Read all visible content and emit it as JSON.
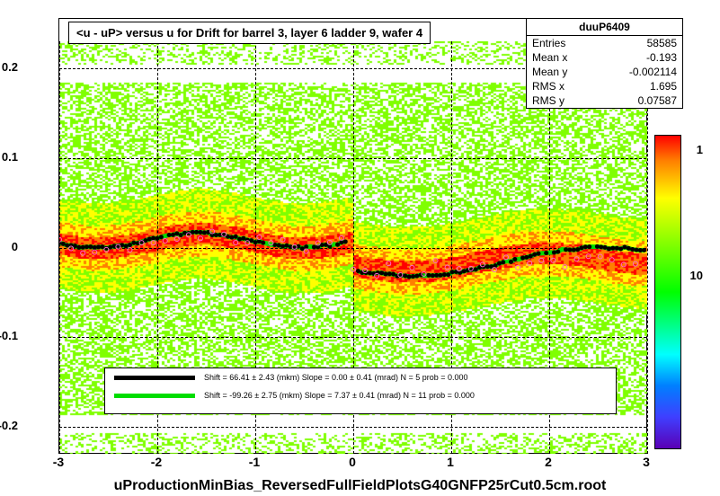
{
  "chart": {
    "type": "heatmap-scatter",
    "title": "<u - uP>       versus    u for Drift for barrel 3, layer 6 ladder 9, wafer 4",
    "stats": {
      "name": "duuP6409",
      "entries": "58585",
      "meanx": "-0.193",
      "meany": "-0.002114",
      "rmsx": "1.695",
      "rmsy": "0.07587"
    },
    "xlim": [
      -3,
      3
    ],
    "ylim": [
      -0.23,
      0.23
    ],
    "xticks": [
      -3,
      -2,
      -1,
      0,
      1,
      2,
      3
    ],
    "yticks": [
      -0.2,
      -0.1,
      0,
      0.1,
      0.2
    ],
    "colorbar_ticks": [
      1,
      10
    ],
    "colorbar_pos": [
      0.42,
      0.82
    ],
    "bottom_label": "uProductionMinBias_ReversedFullFieldPlotsG40GNFP25rCut0.5cm.root",
    "legend": {
      "fit1": {
        "color": "#000000",
        "text": "Shift =    66.41 ± 2.43 (mkm) Slope =     0.00 ± 0.41 (mrad)  N = 5 prob = 0.000"
      },
      "fit2": {
        "color": "#00dd00",
        "text": "Shift =   -99.26 ± 2.75 (mkm) Slope =     7.37 ± 0.41 (mrad)  N = 11 prob = 0.000"
      }
    },
    "curve_left": {
      "y_base": 0.008,
      "amplitude": 0.008,
      "color": "#000000",
      "bg": "#00dd00"
    },
    "curve_right": {
      "y_start": -0.02,
      "y_dip": -0.028,
      "y_end": 0.0,
      "color": "#000000",
      "bg": "#00dd00"
    },
    "heatmap": {
      "band_center": 0.0,
      "band_halfwidth": 0.04,
      "colors": {
        "low": "#7fff00",
        "mid": "#ffff00",
        "high": "#ff7f00",
        "hot": "#ff0000",
        "bg": "#ffffff"
      }
    }
  }
}
